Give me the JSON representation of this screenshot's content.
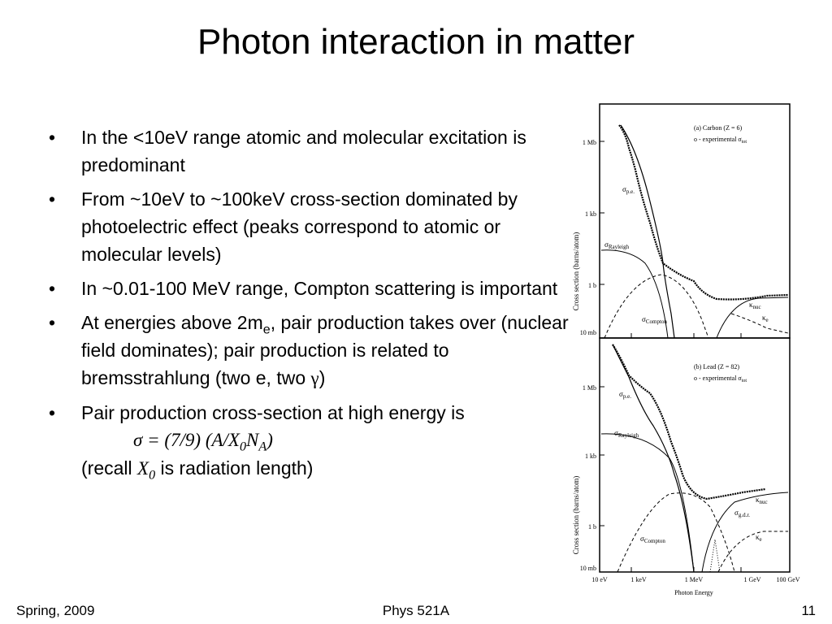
{
  "slide": {
    "title": "Photon interaction in matter",
    "bullet_marker": "•"
  },
  "bullets": {
    "b1": "In the <10eV range atomic and molecular excitation is predominant",
    "b2": "From ~10eV to ~100keV cross-section dominated by photoelectric effect (peaks correspond to atomic or molecular levels)",
    "b3": "In ~0.01-100 MeV range, Compton scattering is important",
    "b4": {
      "pre": "At energies above 2m",
      "sub": "e",
      "mid": ", pair production takes over (nuclear field dominates); pair production is related to bremsstrahlung (two e, two ",
      "gamma": "γ",
      "post": ")"
    },
    "b5": {
      "text": "Pair production cross-section at high energy is",
      "formula_a": "σ = (7/9) (A/X",
      "formula_sub0": "0",
      "formula_b": "N",
      "formula_subA": "A",
      "formula_c": ")",
      "recall_pre": "(recall ",
      "recall_X": "X",
      "recall_sub": "0",
      "recall_post": " is radiation length)"
    }
  },
  "figure": {
    "ylabel": "Cross section  (barns/atom)",
    "xlabel": "Photon Energy",
    "ytick_labels": [
      "1 Mb",
      "1 kb",
      "1 b",
      "10 mb"
    ],
    "xtick_labels": [
      "10 eV",
      "1 keV",
      "1 MeV",
      "1 GeV",
      "100 GeV"
    ],
    "panel_a": {
      "title": "(a) Carbon (Z = 6)",
      "legend": "o  - experimental σ",
      "legend_sub": "tot",
      "labels": {
        "pe": "σ",
        "pe_sub": "p.e.",
        "rayleigh": "σ",
        "rayleigh_sub": "Rayleigh",
        "compton": "σ",
        "compton_sub": "Compton",
        "knuc": "κ",
        "knuc_sub": "nuc",
        "ke": "κ",
        "ke_sub": "e"
      }
    },
    "panel_b": {
      "title": "(b) Lead (Z = 82)",
      "legend": "o  - experimental σ",
      "legend_sub": "tot",
      "labels": {
        "pe": "σ",
        "pe_sub": "p.e.",
        "rayleigh": "σ",
        "rayleigh_sub": "Rayleigh",
        "compton": "σ",
        "compton_sub": "Compton",
        "gdr": "σ",
        "gdr_sub": "g.d.r.",
        "knuc": "κ",
        "knuc_sub": "nuc",
        "ke": "κ",
        "ke_sub": "e"
      }
    }
  },
  "footer": {
    "left": "Spring, 2009",
    "center": "Phys 521A",
    "right": "11"
  }
}
